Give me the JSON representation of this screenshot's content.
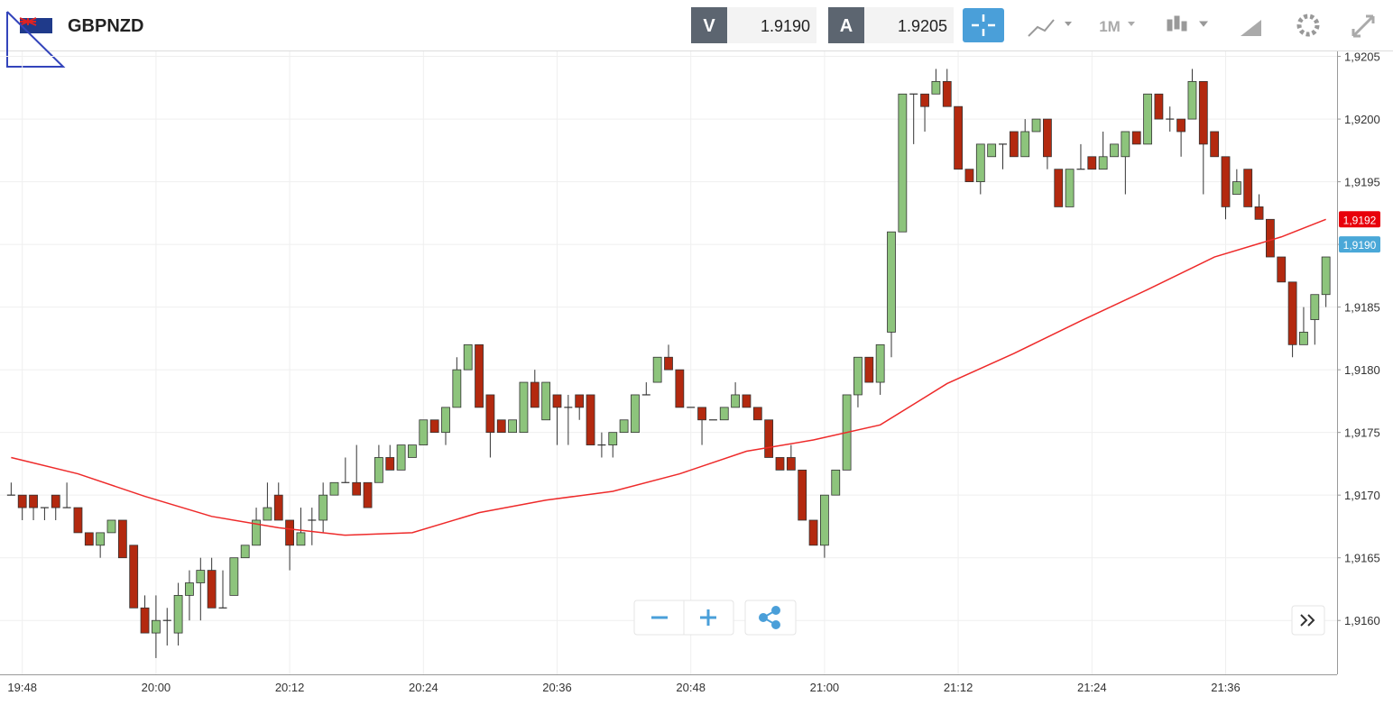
{
  "toolbar": {
    "symbol": "GBPNZD",
    "bid_label": "V",
    "bid": "1.9190",
    "ask_label": "A",
    "ask": "1.9205",
    "timeframe": "1M"
  },
  "chart_data": {
    "type": "candlestick",
    "x": [
      "19:47",
      "19:48",
      "19:49",
      "19:50",
      "19:51",
      "19:52",
      "19:53",
      "19:54",
      "19:55",
      "19:56",
      "19:57",
      "19:58",
      "19:59",
      "20:00",
      "20:01",
      "20:02",
      "20:03",
      "20:04",
      "20:05",
      "20:06",
      "20:07",
      "20:08",
      "20:09",
      "20:10",
      "20:11",
      "20:12",
      "20:13",
      "20:14",
      "20:15",
      "20:16",
      "20:17",
      "20:18",
      "20:19",
      "20:20",
      "20:21",
      "20:22",
      "20:23",
      "20:24",
      "20:25",
      "20:26",
      "20:27",
      "20:28",
      "20:29",
      "20:30",
      "20:31",
      "20:32",
      "20:33",
      "20:34",
      "20:35",
      "20:36",
      "20:37",
      "20:38",
      "20:39",
      "20:40",
      "20:41",
      "20:42",
      "20:43",
      "20:44",
      "20:45",
      "20:46",
      "20:47",
      "20:48",
      "20:49",
      "20:50",
      "20:51",
      "20:52",
      "20:53",
      "20:54",
      "20:55",
      "20:56",
      "20:57",
      "20:58",
      "20:59",
      "21:00",
      "21:01",
      "21:02",
      "21:03",
      "21:04",
      "21:05",
      "21:06",
      "21:07",
      "21:08",
      "21:09",
      "21:10",
      "21:11",
      "21:12",
      "21:13",
      "21:14",
      "21:15",
      "21:16",
      "21:17",
      "21:18",
      "21:19",
      "21:20",
      "21:21",
      "21:22",
      "21:23",
      "21:24",
      "21:25",
      "21:26",
      "21:27",
      "21:28",
      "21:29",
      "21:30",
      "21:31",
      "21:32",
      "21:33",
      "21:34",
      "21:35",
      "21:36",
      "21:37",
      "21:38",
      "21:39",
      "21:40",
      "21:41",
      "21:42",
      "21:43",
      "21:44",
      "21:45"
    ],
    "open": [
      1.917,
      1.917,
      1.917,
      1.9169,
      1.917,
      1.9169,
      1.9169,
      1.9167,
      1.9166,
      1.9167,
      1.9168,
      1.9166,
      1.9161,
      1.9159,
      1.916,
      1.9159,
      1.9162,
      1.9163,
      1.9164,
      1.9161,
      1.9162,
      1.9165,
      1.9166,
      1.9168,
      1.917,
      1.9168,
      1.9166,
      1.9168,
      1.9168,
      1.917,
      1.9171,
      1.9171,
      1.9171,
      1.9171,
      1.9173,
      1.9172,
      1.9173,
      1.9174,
      1.9176,
      1.9175,
      1.9177,
      1.918,
      1.9182,
      1.9178,
      1.9176,
      1.9175,
      1.9175,
      1.9179,
      1.9176,
      1.9178,
      1.9177,
      1.9178,
      1.9178,
      1.9174,
      1.9174,
      1.9175,
      1.9175,
      1.9178,
      1.9179,
      1.9181,
      1.918,
      1.9177,
      1.9177,
      1.9176,
      1.9176,
      1.9177,
      1.9178,
      1.9177,
      1.9176,
      1.9173,
      1.9173,
      1.9172,
      1.9168,
      1.9166,
      1.917,
      1.9172,
      1.9178,
      1.9181,
      1.9179,
      1.9183,
      1.9191,
      1.9202,
      1.9202,
      1.9202,
      1.9203,
      1.9201,
      1.9196,
      1.9195,
      1.9197,
      1.9198,
      1.9199,
      1.9197,
      1.9199,
      1.92,
      1.9196,
      1.9193,
      1.9196,
      1.9197,
      1.9196,
      1.9197,
      1.9197,
      1.9199,
      1.9198,
      1.9202,
      1.92,
      1.92,
      1.92,
      1.9203,
      1.9199,
      1.9197,
      1.9194,
      1.9196,
      1.9193,
      1.9192,
      1.9189,
      1.9187,
      1.9182,
      1.9184,
      1.9186
    ],
    "high": [
      1.9171,
      1.917,
      1.917,
      1.9169,
      1.917,
      1.9171,
      1.9169,
      1.9167,
      1.9167,
      1.9168,
      1.9168,
      1.9166,
      1.9162,
      1.9162,
      1.9161,
      1.9163,
      1.9164,
      1.9165,
      1.9165,
      1.9164,
      1.9165,
      1.9166,
      1.9169,
      1.9171,
      1.9171,
      1.9168,
      1.9169,
      1.9169,
      1.9171,
      1.9171,
      1.9173,
      1.9174,
      1.9171,
      1.9174,
      1.9174,
      1.9174,
      1.9174,
      1.9176,
      1.9176,
      1.9177,
      1.9181,
      1.9182,
      1.9182,
      1.9178,
      1.9176,
      1.9176,
      1.9179,
      1.918,
      1.9179,
      1.9178,
      1.9178,
      1.9178,
      1.9178,
      1.9175,
      1.9175,
      1.9176,
      1.9178,
      1.9179,
      1.9181,
      1.9182,
      1.918,
      1.9177,
      1.9177,
      1.9176,
      1.9177,
      1.9179,
      1.9178,
      1.9177,
      1.9176,
      1.9173,
      1.9174,
      1.9172,
      1.9168,
      1.917,
      1.9172,
      1.9178,
      1.9181,
      1.9181,
      1.9182,
      1.9191,
      1.9202,
      1.9202,
      1.9202,
      1.9204,
      1.9204,
      1.9201,
      1.9196,
      1.9198,
      1.9198,
      1.9198,
      1.9199,
      1.92,
      1.92,
      1.92,
      1.9196,
      1.9196,
      1.9198,
      1.9197,
      1.9199,
      1.9198,
      1.9199,
      1.9199,
      1.9202,
      1.9202,
      1.9201,
      1.92,
      1.9204,
      1.9203,
      1.9199,
      1.9197,
      1.9196,
      1.9196,
      1.9194,
      1.9192,
      1.9189,
      1.9187,
      1.9185,
      1.9186,
      1.9189
    ],
    "low": [
      1.917,
      1.9168,
      1.9168,
      1.9168,
      1.9168,
      1.9169,
      1.9167,
      1.9166,
      1.9165,
      1.9167,
      1.9165,
      1.9161,
      1.9159,
      1.9157,
      1.9158,
      1.9158,
      1.916,
      1.916,
      1.9161,
      1.9161,
      1.9162,
      1.9165,
      1.9166,
      1.9168,
      1.9168,
      1.9164,
      1.9166,
      1.9166,
      1.9167,
      1.917,
      1.9171,
      1.917,
      1.9169,
      1.9171,
      1.9172,
      1.9172,
      1.9173,
      1.9174,
      1.9175,
      1.9174,
      1.9177,
      1.918,
      1.9177,
      1.9173,
      1.9175,
      1.9175,
      1.9175,
      1.9177,
      1.9176,
      1.9174,
      1.9174,
      1.9176,
      1.9174,
      1.9173,
      1.9173,
      1.9175,
      1.9175,
      1.9178,
      1.9179,
      1.918,
      1.9177,
      1.9177,
      1.9174,
      1.9176,
      1.9176,
      1.9177,
      1.9177,
      1.9176,
      1.9173,
      1.9172,
      1.9172,
      1.9168,
      1.9166,
      1.9165,
      1.917,
      1.9172,
      1.9177,
      1.9179,
      1.9178,
      1.9181,
      1.9191,
      1.9198,
      1.9199,
      1.9202,
      1.9201,
      1.9196,
      1.9195,
      1.9194,
      1.9197,
      1.9196,
      1.9197,
      1.9197,
      1.9199,
      1.9196,
      1.9193,
      1.9193,
      1.9196,
      1.9196,
      1.9196,
      1.9197,
      1.9194,
      1.9198,
      1.9198,
      1.92,
      1.9199,
      1.9197,
      1.92,
      1.9194,
      1.9197,
      1.9192,
      1.9194,
      1.9193,
      1.9192,
      1.9189,
      1.9187,
      1.9181,
      1.9182,
      1.9182,
      1.9185
    ],
    "close": [
      1.917,
      1.9169,
      1.9169,
      1.9169,
      1.9169,
      1.9169,
      1.9167,
      1.9166,
      1.9167,
      1.9168,
      1.9165,
      1.9161,
      1.9159,
      1.916,
      1.916,
      1.9162,
      1.9163,
      1.9164,
      1.9161,
      1.9161,
      1.9165,
      1.9166,
      1.9168,
      1.9169,
      1.9168,
      1.9166,
      1.9167,
      1.9168,
      1.917,
      1.9171,
      1.9171,
      1.917,
      1.9169,
      1.9173,
      1.9172,
      1.9174,
      1.9174,
      1.9176,
      1.9175,
      1.9177,
      1.918,
      1.9182,
      1.9177,
      1.9175,
      1.9175,
      1.9176,
      1.9179,
      1.9177,
      1.9179,
      1.9177,
      1.9177,
      1.9177,
      1.9174,
      1.9174,
      1.9175,
      1.9176,
      1.9178,
      1.9178,
      1.9181,
      1.918,
      1.9177,
      1.9177,
      1.9176,
      1.9176,
      1.9177,
      1.9178,
      1.9177,
      1.9176,
      1.9173,
      1.9172,
      1.9172,
      1.9168,
      1.9166,
      1.917,
      1.9172,
      1.9178,
      1.9181,
      1.9179,
      1.9182,
      1.9191,
      1.9202,
      1.9202,
      1.9201,
      1.9203,
      1.9201,
      1.9196,
      1.9195,
      1.9198,
      1.9198,
      1.9198,
      1.9197,
      1.9199,
      1.92,
      1.9197,
      1.9193,
      1.9196,
      1.9196,
      1.9196,
      1.9197,
      1.9198,
      1.9199,
      1.9198,
      1.9202,
      1.92,
      1.92,
      1.9199,
      1.9203,
      1.9198,
      1.9197,
      1.9193,
      1.9195,
      1.9193,
      1.9192,
      1.9189,
      1.9187,
      1.9182,
      1.9183,
      1.9186,
      1.9189
    ],
    "up_color": "#8dc47c",
    "down_color": "#b3290f",
    "wick_color": "#333333",
    "ma": {
      "color": "#ee2a2a",
      "x": [
        "19:47",
        "19:53",
        "19:59",
        "20:05",
        "20:11",
        "20:17",
        "20:23",
        "20:29",
        "20:35",
        "20:41",
        "20:47",
        "20:53",
        "20:59",
        "21:05",
        "21:11",
        "21:17",
        "21:23",
        "21:29",
        "21:35",
        "21:41",
        "21:45"
      ],
      "values": [
        1.9173,
        1.91717,
        1.91699,
        1.91683,
        1.91674,
        1.91668,
        1.9167,
        1.91686,
        1.91696,
        1.91703,
        1.91717,
        1.91735,
        1.91744,
        1.91756,
        1.91789,
        1.91813,
        1.91839,
        1.91864,
        1.9189,
        1.91906,
        1.9192
      ]
    },
    "price_labels": [
      {
        "value": 1.9192,
        "label": "1,9192",
        "color": "#e8000b"
      },
      {
        "value": 1.919,
        "label": "1,9190",
        "color": "#4aa8d8"
      }
    ],
    "xlim": [
      "19:46",
      "21:46"
    ],
    "xticks": [
      "19:48",
      "20:00",
      "20:12",
      "20:24",
      "20:36",
      "20:48",
      "21:00",
      "21:12",
      "21:24",
      "21:36"
    ],
    "ylim": [
      1.91557,
      1.92054
    ],
    "yticks": [
      {
        "value": 1.916,
        "label": "1,9160"
      },
      {
        "value": 1.9165,
        "label": "1,9165"
      },
      {
        "value": 1.917,
        "label": "1,9170"
      },
      {
        "value": 1.9175,
        "label": "1,9175"
      },
      {
        "value": 1.918,
        "label": "1,9180"
      },
      {
        "value": 1.9185,
        "label": "1,9185"
      },
      {
        "value": 1.919,
        "label": "1,9190"
      },
      {
        "value": 1.9195,
        "label": "1,9195"
      },
      {
        "value": 1.92,
        "label": "1,9200"
      },
      {
        "value": 1.9205,
        "label": "1,9205"
      }
    ],
    "grid": true
  }
}
